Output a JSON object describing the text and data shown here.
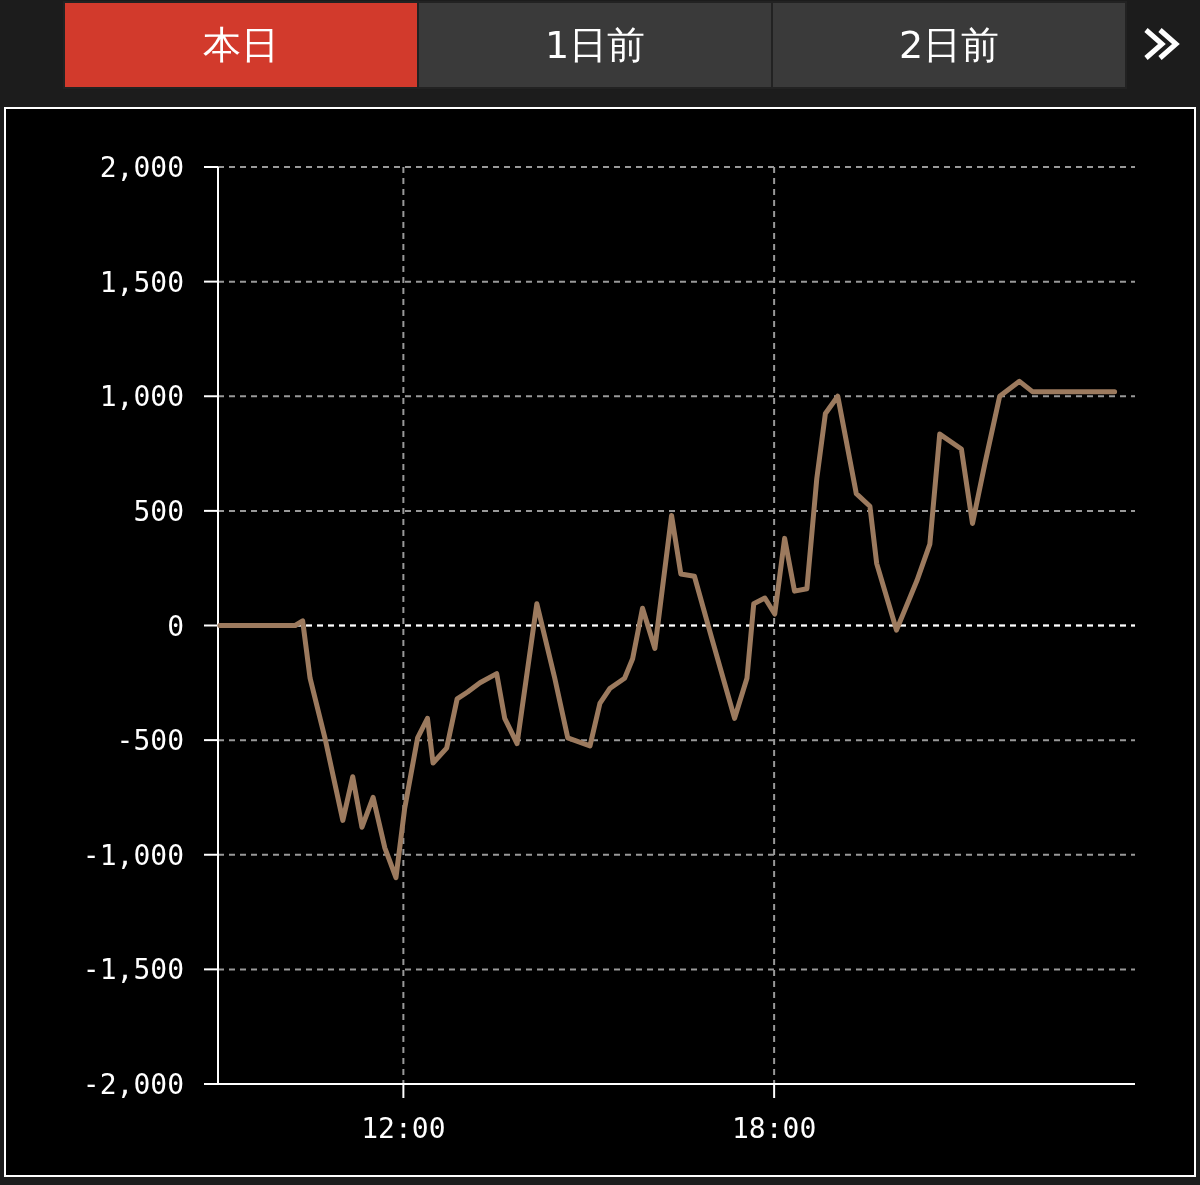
{
  "chart_data": {
    "type": "line",
    "annotations": [
      "本日",
      "1日前",
      "2日前"
    ],
    "xlim": [
      9,
      23.84
    ],
    "xticks": [
      {
        "value": 12,
        "label": "12:00"
      },
      {
        "value": 18,
        "label": "18:00"
      }
    ],
    "ylim": [
      -2000,
      2000
    ],
    "yticks": [
      {
        "value": -2000,
        "label": "-2,000"
      },
      {
        "value": -1500,
        "label": "-1,500"
      },
      {
        "value": -1000,
        "label": "-1,000"
      },
      {
        "value": -500,
        "label": "-500"
      },
      0,
      {
        "value": 500,
        "label": "500"
      },
      {
        "value": 1000,
        "label": "1,000"
      },
      {
        "value": 1500,
        "label": "1,500"
      },
      {
        "value": 2000,
        "label": "2,000"
      }
    ],
    "grid": true,
    "ref_lines": [
      {
        "axis": "y",
        "value": 0,
        "color": "#ffffff",
        "line_style": "dashed"
      }
    ],
    "line_style": "solid",
    "marker": "none",
    "x": [
      9.03,
      10.25,
      10.37,
      10.49,
      10.73,
      11.02,
      11.18,
      11.33,
      11.51,
      11.7,
      11.88,
      12.02,
      12.23,
      12.39,
      12.48,
      12.7,
      12.87,
      13.04,
      13.24,
      13.51,
      13.64,
      13.84,
      14.16,
      14.45,
      14.66,
      15.02,
      15.18,
      15.34,
      15.58,
      15.71,
      15.87,
      16.07,
      16.34,
      16.49,
      16.71,
      16.99,
      17.36,
      17.56,
      17.67,
      17.85,
      18.01,
      18.17,
      18.33,
      18.53,
      18.69,
      18.83,
      19.03,
      19.33,
      19.55,
      19.66,
      19.98,
      20.31,
      20.52,
      20.68,
      21.03,
      21.21,
      21.41,
      21.65,
      21.97,
      22.18,
      23.51
    ],
    "series": [
      {
        "color": "#9c7a5e",
        "values": [
          0,
          0,
          20,
          -230,
          -490,
          -850,
          -660,
          -880,
          -750,
          -970,
          -1100,
          -800,
          -490,
          -405,
          -600,
          -535,
          -320,
          -290,
          -250,
          -210,
          -405,
          -515,
          95,
          -230,
          -490,
          -525,
          -340,
          -275,
          -230,
          -145,
          75,
          -100,
          480,
          225,
          215,
          -55,
          -405,
          -230,
          95,
          120,
          50,
          380,
          150,
          160,
          640,
          925,
          1000,
          575,
          520,
          270,
          -20,
          195,
          355,
          835,
          770,
          445,
          705,
          1000,
          1065,
          1020,
          1020
        ]
      }
    ]
  }
}
